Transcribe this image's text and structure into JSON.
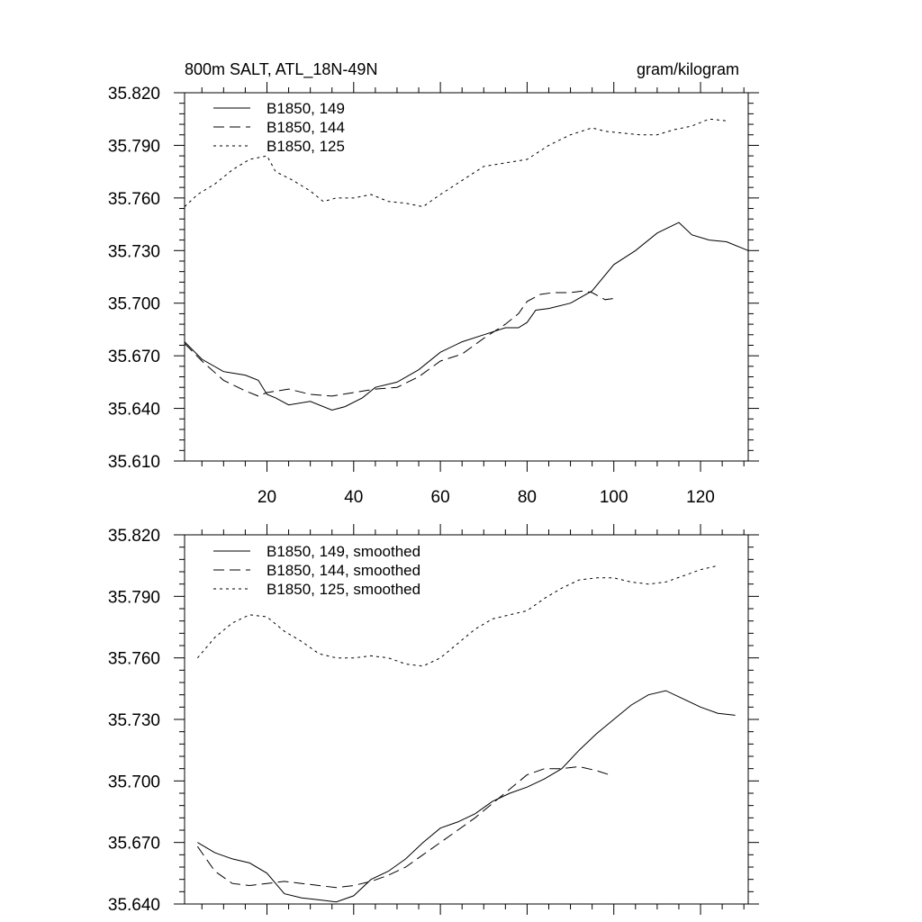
{
  "chart_data": [
    {
      "type": "line",
      "title": "800m SALT, ATL_18N-49N",
      "units": "gram/kilogram",
      "xlim": [
        1,
        131
      ],
      "ylim": [
        35.61,
        35.82
      ],
      "xticks": [
        20,
        40,
        60,
        80,
        100,
        120
      ],
      "yticks": [
        35.61,
        35.64,
        35.67,
        35.7,
        35.73,
        35.76,
        35.79,
        35.82
      ],
      "ytick_labels": [
        "35.610",
        "35.640",
        "35.670",
        "35.700",
        "35.730",
        "35.760",
        "35.790",
        "35.820"
      ],
      "series": [
        {
          "name": "B1850, 149",
          "dash": "solid",
          "x": [
            1,
            5,
            10,
            15,
            18,
            20,
            22,
            25,
            30,
            35,
            38,
            42,
            45,
            50,
            55,
            60,
            65,
            70,
            75,
            78,
            80,
            82,
            85,
            90,
            95,
            100,
            105,
            110,
            115,
            118,
            122,
            126,
            131
          ],
          "y": [
            35.678,
            35.668,
            35.661,
            35.659,
            35.656,
            35.648,
            35.646,
            35.642,
            35.644,
            35.639,
            35.641,
            35.646,
            35.652,
            35.655,
            35.662,
            35.672,
            35.678,
            35.682,
            35.686,
            35.686,
            35.689,
            35.696,
            35.697,
            35.7,
            35.707,
            35.722,
            35.73,
            35.74,
            35.746,
            35.739,
            35.736,
            35.735,
            35.73
          ]
        },
        {
          "name": "B1850, 144",
          "dash": "dashed",
          "x": [
            1,
            5,
            10,
            15,
            18,
            20,
            25,
            30,
            35,
            40,
            45,
            50,
            55,
            60,
            65,
            70,
            75,
            78,
            80,
            83,
            86,
            90,
            93,
            95,
            98,
            101
          ],
          "y": [
            35.677,
            35.667,
            35.656,
            35.65,
            35.647,
            35.649,
            35.651,
            35.648,
            35.647,
            35.649,
            35.651,
            35.652,
            35.658,
            35.667,
            35.671,
            35.68,
            35.688,
            35.694,
            35.701,
            35.705,
            35.706,
            35.706,
            35.707,
            35.706,
            35.702,
            35.703
          ]
        },
        {
          "name": "B1850, 125",
          "dash": "dotted",
          "x": [
            1,
            4,
            8,
            12,
            16,
            20,
            22,
            26,
            30,
            33,
            36,
            40,
            44,
            48,
            52,
            56,
            60,
            65,
            70,
            75,
            80,
            85,
            90,
            95,
            98,
            102,
            106,
            110,
            114,
            118,
            122,
            126
          ],
          "y": [
            35.755,
            35.762,
            35.768,
            35.776,
            35.782,
            35.784,
            35.775,
            35.77,
            35.764,
            35.758,
            35.76,
            35.76,
            35.762,
            35.758,
            35.757,
            35.755,
            35.762,
            35.77,
            35.778,
            35.78,
            35.782,
            35.79,
            35.796,
            35.8,
            35.798,
            35.797,
            35.796,
            35.796,
            35.799,
            35.801,
            35.805,
            35.804
          ]
        }
      ]
    },
    {
      "type": "line",
      "xlim": [
        1,
        131
      ],
      "ylim": [
        35.64,
        35.82
      ],
      "xticks": [
        20,
        40,
        60,
        80,
        100,
        120
      ],
      "yticks": [
        35.64,
        35.67,
        35.7,
        35.73,
        35.76,
        35.79,
        35.82
      ],
      "ytick_labels": [
        "35.640",
        "35.670",
        "35.700",
        "35.730",
        "35.760",
        "35.790",
        "35.820"
      ],
      "series": [
        {
          "name": "B1850, 149, smoothed",
          "dash": "solid",
          "x": [
            4,
            8,
            12,
            16,
            20,
            24,
            28,
            32,
            36,
            40,
            44,
            48,
            52,
            56,
            60,
            64,
            68,
            72,
            76,
            80,
            84,
            88,
            92,
            96,
            100,
            104,
            108,
            112,
            116,
            120,
            124,
            128
          ],
          "y": [
            35.67,
            35.665,
            35.662,
            35.66,
            35.655,
            35.645,
            35.643,
            35.642,
            35.641,
            35.644,
            35.652,
            35.656,
            35.662,
            35.67,
            35.677,
            35.68,
            35.684,
            35.69,
            35.694,
            35.697,
            35.701,
            35.706,
            35.715,
            35.723,
            35.73,
            35.737,
            35.742,
            35.744,
            35.74,
            35.736,
            35.733,
            35.732
          ]
        },
        {
          "name": "B1850, 144, smoothed",
          "dash": "dashed",
          "x": [
            4,
            8,
            12,
            16,
            20,
            24,
            28,
            32,
            36,
            40,
            44,
            48,
            52,
            56,
            60,
            64,
            68,
            72,
            76,
            80,
            84,
            88,
            92,
            96,
            99
          ],
          "y": [
            35.668,
            35.656,
            35.65,
            35.649,
            35.65,
            35.651,
            35.65,
            35.649,
            35.648,
            35.649,
            35.651,
            35.654,
            35.658,
            35.664,
            35.67,
            35.676,
            35.682,
            35.689,
            35.696,
            35.703,
            35.706,
            35.706,
            35.707,
            35.705,
            35.703
          ]
        },
        {
          "name": "B1850, 125, smoothed",
          "dash": "dotted",
          "x": [
            4,
            8,
            12,
            16,
            20,
            24,
            28,
            32,
            36,
            40,
            44,
            48,
            52,
            56,
            60,
            64,
            68,
            72,
            76,
            80,
            84,
            88,
            92,
            96,
            100,
            104,
            108,
            112,
            116,
            120,
            124
          ],
          "y": [
            35.76,
            35.77,
            35.777,
            35.781,
            35.78,
            35.773,
            35.768,
            35.762,
            35.76,
            35.76,
            35.761,
            35.76,
            35.757,
            35.756,
            35.76,
            35.767,
            35.774,
            35.779,
            35.781,
            35.783,
            35.789,
            35.794,
            35.798,
            35.799,
            35.799,
            35.797,
            35.796,
            35.797,
            35.8,
            35.803,
            35.805
          ]
        }
      ]
    }
  ]
}
